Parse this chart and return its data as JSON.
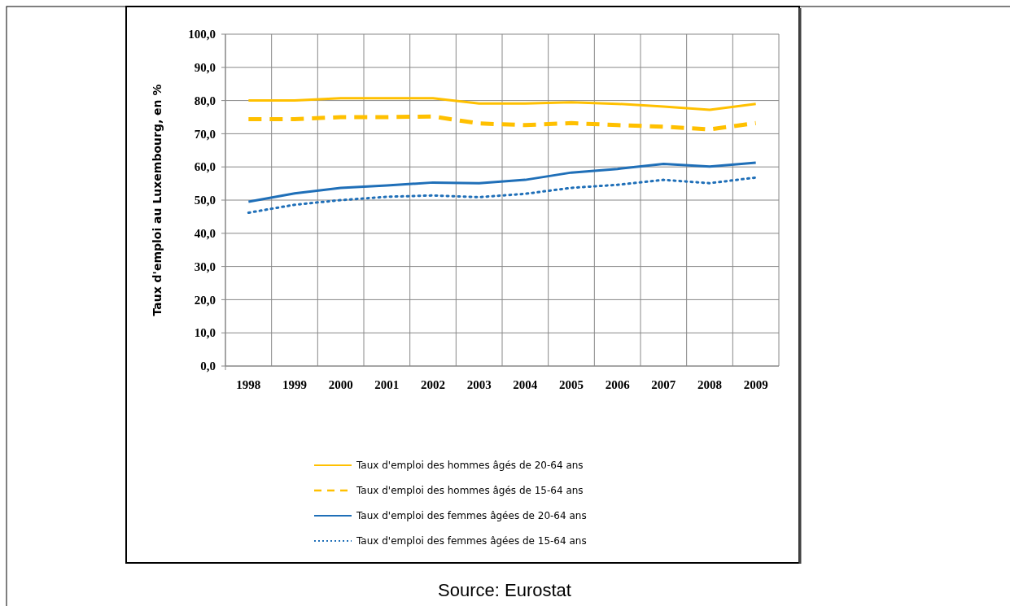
{
  "chart_data": {
    "type": "line",
    "ylabel": "Taux d'emploi au Luxembourg, en %",
    "categories": [
      "1998",
      "1999",
      "2000",
      "2001",
      "2002",
      "2003",
      "2004",
      "2005",
      "2006",
      "2007",
      "2008",
      "2009"
    ],
    "ylim": [
      0,
      100
    ],
    "yticks": [
      {
        "value": 0,
        "label": "0,0"
      },
      {
        "value": 10,
        "label": "10,0"
      },
      {
        "value": 20,
        "label": "20,0"
      },
      {
        "value": 30,
        "label": "30,0"
      },
      {
        "value": 40,
        "label": "40,0"
      },
      {
        "value": 50,
        "label": "50,0"
      },
      {
        "value": 60,
        "label": "60,0"
      },
      {
        "value": 70,
        "label": "70,0"
      },
      {
        "value": 80,
        "label": "80,0"
      },
      {
        "value": 90,
        "label": "90,0"
      },
      {
        "value": 100,
        "label": "100,0"
      }
    ],
    "grid": true,
    "legend": "bottom",
    "marker": "none",
    "series": [
      {
        "name": "Taux d'emploi des hommes âgés de 20-64 ans",
        "color": "#ffc000",
        "line_style": "solid",
        "values": [
          80.0,
          80.0,
          80.7,
          80.7,
          80.7,
          79.1,
          79.1,
          79.5,
          79.0,
          78.2,
          77.2,
          79.0
        ]
      },
      {
        "name": "Taux d'emploi des hommes âgés de 15-64 ans",
        "color": "#ffc000",
        "line_style": "dashed",
        "values": [
          74.4,
          74.4,
          75.0,
          75.0,
          75.2,
          73.1,
          72.6,
          73.2,
          72.6,
          72.1,
          71.3,
          73.2
        ]
      },
      {
        "name": "Taux d'emploi des femmes âgées de 20-64 ans",
        "color": "#1f6fb8",
        "line_style": "solid",
        "values": [
          49.5,
          52.0,
          53.7,
          54.4,
          55.3,
          55.1,
          56.1,
          58.3,
          59.4,
          60.9,
          60.1,
          61.3
        ]
      },
      {
        "name": "Taux d'emploi des femmes âgées de 15-64 ans",
        "color": "#1f6fb8",
        "line_style": "dotted",
        "values": [
          46.2,
          48.6,
          50.0,
          51.0,
          51.4,
          50.9,
          51.9,
          53.7,
          54.6,
          56.1,
          55.1,
          56.8
        ]
      }
    ],
    "annotations": [
      "Source: Eurostat"
    ]
  }
}
